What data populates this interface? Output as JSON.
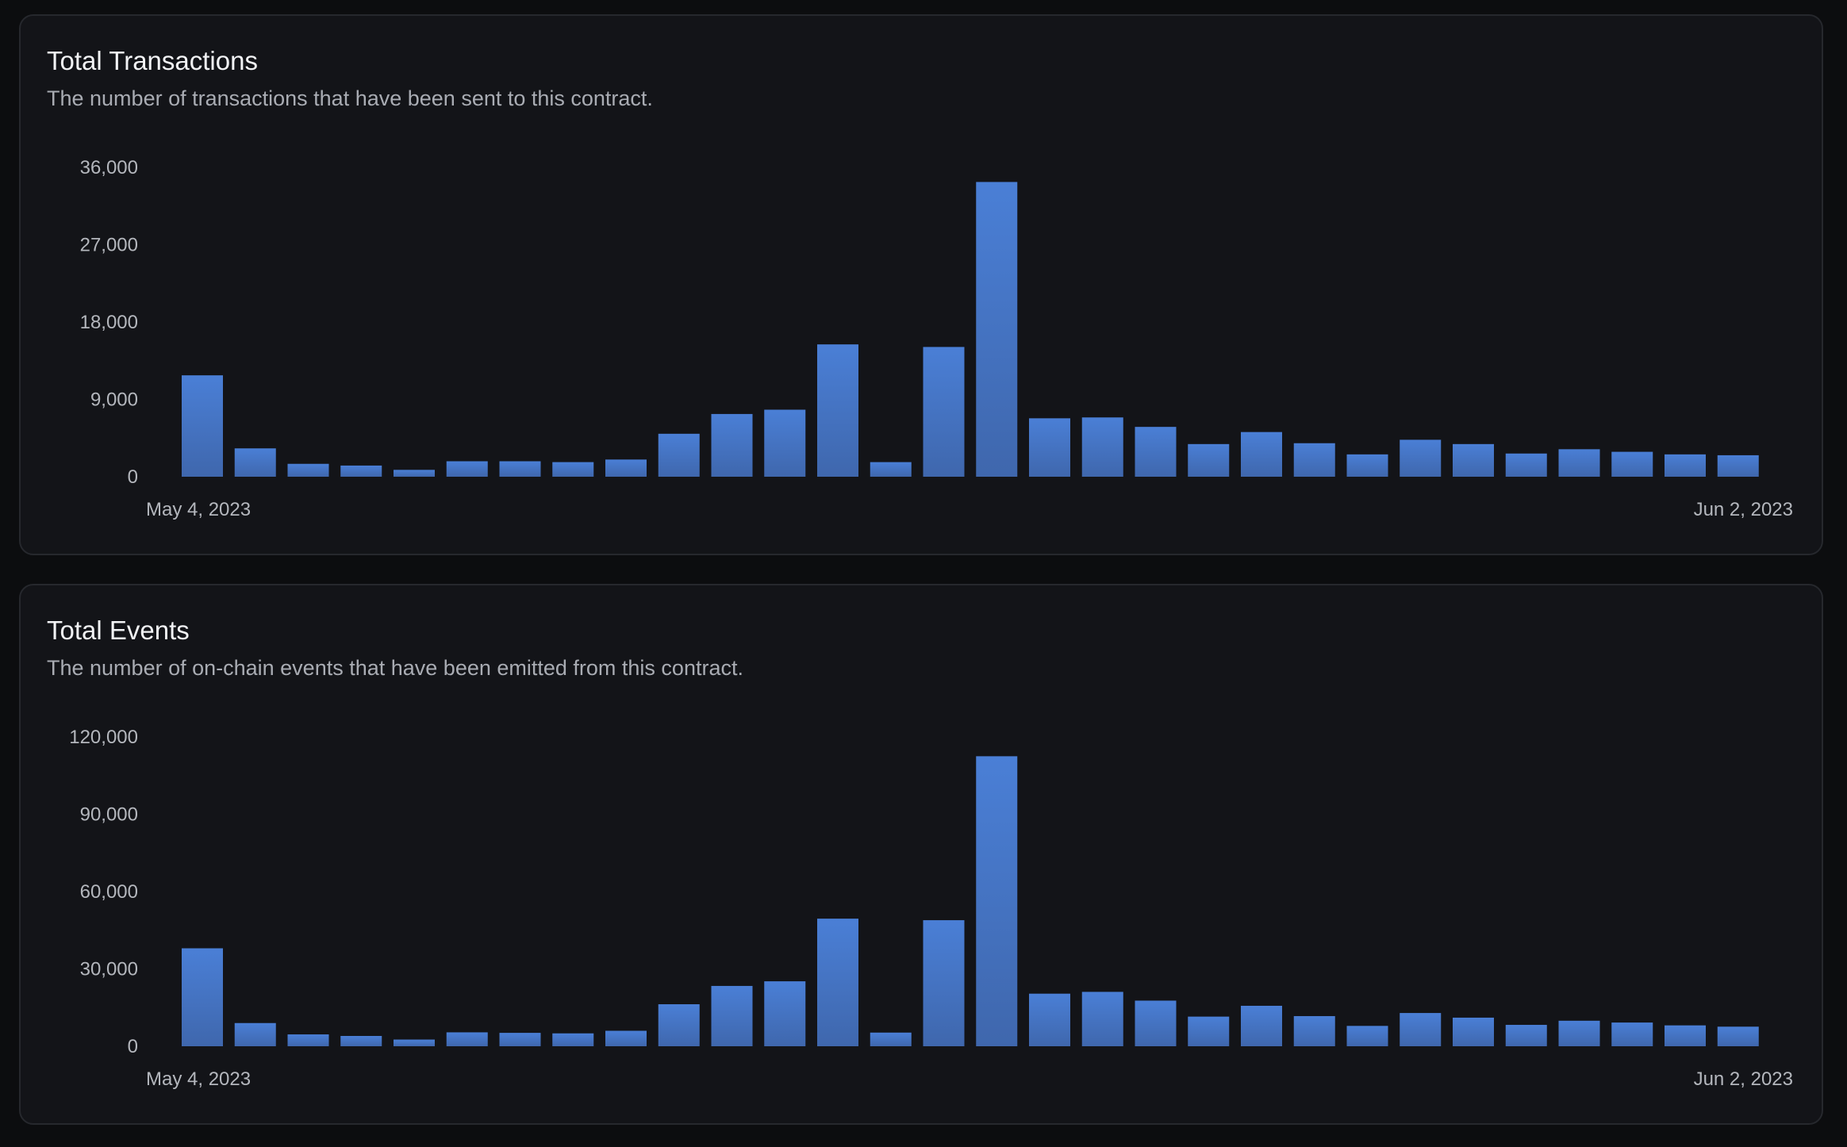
{
  "colors": {
    "bar_top": "#4a7fd6",
    "bar_bottom": "#3f67ad"
  },
  "chart_data": [
    {
      "type": "bar",
      "title": "Total Transactions",
      "subtitle": "The number of transactions that have been sent to this contract.",
      "y_ticks": [
        "36,000",
        "27,000",
        "18,000",
        "9,000",
        "0"
      ],
      "y_tick_values": [
        36000,
        27000,
        18000,
        9000,
        0
      ],
      "ylim": [
        0,
        36000
      ],
      "x_labels": [
        "May 4, 2023",
        "Jun 2, 2023"
      ],
      "values": [
        11800,
        3300,
        1500,
        1300,
        800,
        1800,
        1800,
        1700,
        2000,
        5000,
        7300,
        7800,
        15400,
        1700,
        15100,
        34300,
        6800,
        6900,
        5800,
        3800,
        5200,
        3900,
        2600,
        4300,
        3800,
        2700,
        3200,
        2900,
        2600,
        2500
      ],
      "grid": false,
      "legend": "none"
    },
    {
      "type": "bar",
      "title": "Total Events",
      "subtitle": "The number of on-chain events that have been emitted from this contract.",
      "y_ticks": [
        "120,000",
        "90,000",
        "60,000",
        "30,000",
        "0"
      ],
      "y_tick_values": [
        120000,
        90000,
        60000,
        30000,
        0
      ],
      "ylim": [
        0,
        120000
      ],
      "x_labels": [
        "May 4, 2023",
        "Jun 2, 2023"
      ],
      "values": [
        38000,
        9000,
        4600,
        4000,
        2600,
        5400,
        5200,
        5000,
        6000,
        16300,
        23400,
        25200,
        49500,
        5300,
        48900,
        112500,
        20400,
        21100,
        17700,
        11500,
        15700,
        11700,
        7900,
        12900,
        11100,
        8300,
        9900,
        9200,
        8100,
        7600
      ],
      "grid": false,
      "legend": "none"
    }
  ]
}
